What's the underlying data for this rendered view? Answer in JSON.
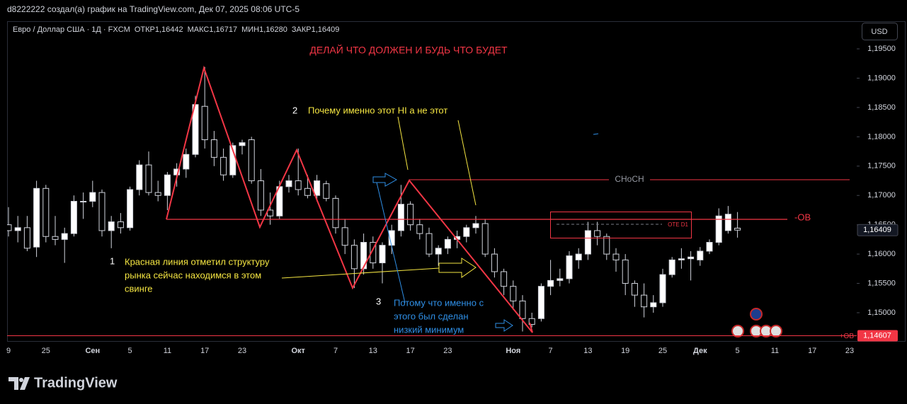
{
  "header": {
    "credit": "d8222222 создал(а) график на TradingView.com, Дек 07, 2025 08:06 UTC-5"
  },
  "toolbar": {
    "currency": "USD"
  },
  "footer": {
    "logo": "TradingView"
  },
  "chart_data": {
    "type": "candlestick",
    "title": "Евро / Доллар США · 1Д · FXCM",
    "legend": {
      "open_label": "ОТКР",
      "open": "1,16442",
      "high_label": "МАКС",
      "high": "1,16717",
      "low_label": "МИН",
      "low": "1,16280",
      "close_label": "ЗАКР",
      "close": "1,16409"
    },
    "categories": [
      "9",
      null,
      null,
      null,
      "25",
      null,
      null,
      null,
      null,
      "Сен",
      null,
      null,
      null,
      "5",
      null,
      null,
      null,
      "11",
      null,
      null,
      null,
      "17",
      null,
      null,
      null,
      "23",
      null,
      null,
      null,
      null,
      null,
      "Окт",
      null,
      null,
      null,
      "7",
      null,
      null,
      null,
      "13",
      null,
      null,
      null,
      "17",
      null,
      null,
      null,
      "23",
      null,
      null,
      null,
      null,
      null,
      null,
      "Ноя",
      null,
      null,
      null,
      "7",
      null,
      null,
      null,
      "13",
      null,
      null,
      null,
      "19",
      null,
      null,
      null,
      "25",
      null,
      null,
      null,
      "Дек",
      null,
      null,
      null,
      "5",
      null,
      null,
      null,
      "11",
      null,
      null,
      null,
      "17",
      null,
      null,
      null,
      "23"
    ],
    "open": [
      1.165,
      1.164,
      1.1645,
      1.1612,
      1.1712,
      1.163,
      1.1625,
      1.1635,
      1.169,
      1.169,
      1.1705,
      1.164,
      1.1655,
      1.1645,
      1.171,
      1.1752,
      1.1705,
      1.17,
      1.1735,
      1.1745,
      1.177,
      1.1852,
      1.1795,
      1.1765,
      1.1735,
      1.1785,
      1.1795,
      1.1725,
      1.1675,
      1.1665,
      1.1715,
      1.1725,
      1.1712,
      1.17,
      1.172,
      1.1695,
      1.1645,
      1.1615,
      1.1575,
      1.162,
      1.1585,
      1.1615,
      1.164,
      1.1685,
      1.165,
      1.1635,
      1.16,
      1.161,
      1.1625,
      1.163,
      1.1645,
      1.1652,
      1.16,
      1.157,
      1.1545,
      1.152,
      1.149,
      1.149,
      1.1545,
      1.1555,
      1.1558,
      1.159,
      1.16,
      1.164,
      1.163,
      1.16,
      1.159,
      1.155,
      1.153,
      1.151,
      1.1517,
      1.1565,
      1.159,
      1.1592,
      1.159,
      1.1605,
      1.162,
      1.164,
      1.16442,
      null,
      null,
      null,
      null,
      null,
      null,
      null,
      null,
      null,
      null,
      null,
      null
    ],
    "high": [
      1.168,
      1.1665,
      1.1665,
      1.1725,
      1.1718,
      1.1665,
      1.1645,
      1.17,
      1.1705,
      1.1725,
      1.171,
      1.1665,
      1.167,
      1.1715,
      1.176,
      1.1775,
      1.1725,
      1.174,
      1.1755,
      1.178,
      1.187,
      1.1919,
      1.181,
      1.178,
      1.179,
      1.1795,
      1.18,
      1.1745,
      1.1705,
      1.1725,
      1.1735,
      1.178,
      1.1735,
      1.1735,
      1.1725,
      1.17,
      1.166,
      1.1625,
      1.1635,
      1.163,
      1.162,
      1.165,
      1.1718,
      1.169,
      1.166,
      1.1645,
      1.1615,
      1.163,
      1.164,
      1.165,
      1.1665,
      1.166,
      1.161,
      1.1575,
      1.1555,
      1.153,
      1.15,
      1.155,
      1.159,
      1.1575,
      1.1605,
      1.161,
      1.1655,
      1.1655,
      1.1635,
      1.161,
      1.16,
      1.1555,
      1.155,
      1.153,
      1.1575,
      1.1595,
      1.161,
      1.1605,
      1.1612,
      1.1625,
      1.1678,
      1.1682,
      1.16717,
      null,
      null,
      null,
      null,
      null,
      null,
      null,
      null,
      null,
      null,
      null,
      null
    ],
    "low": [
      1.163,
      1.162,
      1.1605,
      1.1595,
      1.162,
      1.1615,
      1.1585,
      1.163,
      1.166,
      1.168,
      1.163,
      1.161,
      1.1635,
      1.164,
      1.17,
      1.17,
      1.169,
      1.1675,
      1.1715,
      1.173,
      1.1765,
      1.178,
      1.175,
      1.1725,
      1.173,
      1.177,
      1.172,
      1.1665,
      1.165,
      1.166,
      1.1705,
      1.17,
      1.1695,
      1.169,
      1.169,
      1.1635,
      1.16,
      1.1542,
      1.1565,
      1.1575,
      1.155,
      1.16,
      1.163,
      1.164,
      1.1625,
      1.1595,
      1.158,
      1.16,
      1.161,
      1.162,
      1.1635,
      1.1595,
      1.156,
      1.153,
      1.1505,
      1.1468,
      1.1475,
      1.1485,
      1.153,
      1.1545,
      1.155,
      1.1575,
      1.159,
      1.1615,
      1.159,
      1.157,
      1.153,
      1.151,
      1.1492,
      1.15,
      1.151,
      1.156,
      1.1575,
      1.1555,
      1.158,
      1.16,
      1.1615,
      1.1635,
      1.1628,
      null,
      null,
      null,
      null,
      null,
      null,
      null,
      null,
      null,
      null,
      null,
      null
    ],
    "close": [
      1.164,
      1.1645,
      1.161,
      1.1712,
      1.163,
      1.1625,
      1.1635,
      1.169,
      1.169,
      1.1705,
      1.164,
      1.1655,
      1.1645,
      1.171,
      1.1752,
      1.1705,
      1.17,
      1.1735,
      1.1745,
      1.177,
      1.1855,
      1.1795,
      1.1765,
      1.1735,
      1.1785,
      1.179,
      1.1725,
      1.1675,
      1.1665,
      1.1715,
      1.1725,
      1.171,
      1.17,
      1.1725,
      1.1695,
      1.1645,
      1.1615,
      1.1575,
      1.162,
      1.1585,
      1.1615,
      1.164,
      1.1685,
      1.165,
      1.1635,
      1.16,
      1.161,
      1.1625,
      1.163,
      1.1645,
      1.1652,
      1.16,
      1.157,
      1.1545,
      1.152,
      1.149,
      1.148,
      1.1545,
      1.1555,
      1.1558,
      1.1597,
      1.16,
      1.164,
      1.163,
      1.16,
      1.159,
      1.155,
      1.153,
      1.151,
      1.1517,
      1.1565,
      1.159,
      1.1592,
      1.1595,
      1.1605,
      1.162,
      1.1665,
      1.1668,
      1.16409,
      null,
      null,
      null,
      null,
      null,
      null,
      null,
      null,
      null,
      null,
      null,
      null
    ],
    "up_color": "#ffffff",
    "down_color": "#000000",
    "wick_color": "#d1d4dc",
    "ylim": [
      1.14517,
      1.19971
    ],
    "yticks": [
      {
        "value": 1.195,
        "label": "1,19500"
      },
      {
        "value": 1.19,
        "label": "1,19000"
      },
      {
        "value": 1.185,
        "label": "1,18500"
      },
      {
        "value": 1.18,
        "label": "1,18000"
      },
      {
        "value": 1.175,
        "label": "1,17500"
      },
      {
        "value": 1.17,
        "label": "1,17000"
      },
      {
        "value": 1.165,
        "label": "1,16500"
      },
      {
        "value": 1.16,
        "label": "1,16000"
      },
      {
        "value": 1.155,
        "label": "1,15500"
      },
      {
        "value": 1.15,
        "label": "1,15000"
      }
    ],
    "grid": false,
    "last_price": {
      "value": 1.16409,
      "label": "1,16409"
    },
    "levels": [
      {
        "name": "+OB",
        "price": {
          "value": 1.14607,
          "label": "1,14607"
        },
        "color": "#f23645"
      }
    ],
    "annotations": {
      "motto": "ДЕЛАЙ ЧТО ДОЛЖЕН И БУДЬ ЧТО БУДЕТ",
      "num_1": "1",
      "num_2": "2",
      "num_3": "3",
      "question": "Почему именно этот HI а не этот",
      "note_structure": [
        "Красная линия отметил структуру",
        "рынка сейчас находимся в этом",
        "свинге"
      ],
      "note_reason": [
        "Потому что именно с",
        "этого был сделан",
        "низкий минимум"
      ],
      "choch": "CHoCH",
      "minus_ob": "-OB",
      "ote": "OTE D1"
    }
  }
}
